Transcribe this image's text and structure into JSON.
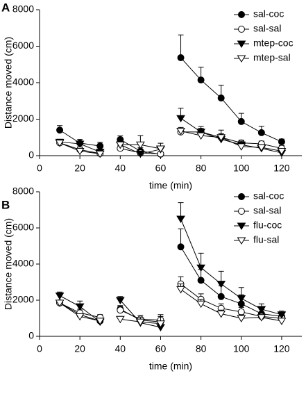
{
  "chart_data": [
    {
      "type": "line",
      "panel_label": "A",
      "xlabel": "time (min)",
      "ylabel": "Distance moved (cm)",
      "x": [
        10,
        20,
        30,
        null,
        40,
        50,
        60,
        null,
        70,
        80,
        90,
        100,
        110,
        120
      ],
      "xlim": [
        0,
        130
      ],
      "xticks": [
        0,
        20,
        40,
        60,
        80,
        100,
        120
      ],
      "ylim": [
        0,
        8000
      ],
      "yticks": [
        0,
        2000,
        4000,
        6000,
        8000
      ],
      "legend": "upper right",
      "series": [
        {
          "name": "sal-coc",
          "marker": "circle",
          "color": "#000000",
          "values": [
            1400,
            690,
            530,
            null,
            880,
            250,
            80,
            null,
            5370,
            4150,
            3160,
            1870,
            1260,
            760
          ],
          "errors": [
            250,
            200,
            200,
            null,
            200,
            200,
            100,
            null,
            1250,
            700,
            700,
            450,
            350,
            150
          ]
        },
        {
          "name": "sal-sal",
          "marker": "circle",
          "color": "#ffffff",
          "values": [
            700,
            330,
            120,
            null,
            400,
            150,
            100,
            null,
            1300,
            1300,
            1000,
            700,
            650,
            400
          ],
          "errors": [
            150,
            150,
            100,
            null,
            150,
            100,
            100,
            null,
            200,
            200,
            200,
            150,
            150,
            150
          ]
        },
        {
          "name": "mtep-coc",
          "marker": "triangle-down",
          "color": "#000000",
          "values": [
            750,
            650,
            200,
            null,
            600,
            100,
            350,
            null,
            2050,
            1300,
            900,
            600,
            400,
            150
          ],
          "errors": [
            150,
            150,
            100,
            null,
            200,
            100,
            150,
            null,
            550,
            300,
            250,
            200,
            150,
            100
          ]
        },
        {
          "name": "mtep-sal",
          "marker": "triangle-down",
          "color": "#ffffff",
          "values": [
            700,
            250,
            100,
            null,
            600,
            600,
            380,
            null,
            1350,
            1100,
            1000,
            500,
            450,
            250
          ],
          "errors": [
            150,
            150,
            100,
            null,
            200,
            500,
            300,
            null,
            200,
            200,
            400,
            150,
            150,
            100
          ]
        }
      ]
    },
    {
      "type": "line",
      "panel_label": "B",
      "xlabel": "time (min)",
      "ylabel": "Distance moved (cm)",
      "x": [
        10,
        20,
        30,
        null,
        40,
        50,
        60,
        null,
        70,
        80,
        90,
        100,
        110,
        120
      ],
      "xlim": [
        0,
        130
      ],
      "xticks": [
        0,
        20,
        40,
        60,
        80,
        100,
        120
      ],
      "ylim": [
        0,
        8000
      ],
      "yticks": [
        0,
        2000,
        4000,
        6000,
        8000
      ],
      "legend": "upper right",
      "series": [
        {
          "name": "sal-coc",
          "marker": "circle",
          "color": "#000000",
          "values": [
            1850,
            1200,
            850,
            null,
            1500,
            900,
            800,
            null,
            4950,
            3100,
            2200,
            1800,
            1250,
            1100
          ],
          "errors": [
            150,
            200,
            150,
            null,
            200,
            150,
            150,
            null,
            1000,
            600,
            600,
            500,
            250,
            200
          ]
        },
        {
          "name": "sal-sal",
          "marker": "circle",
          "color": "#ffffff",
          "values": [
            1850,
            1300,
            1050,
            null,
            1450,
            950,
            900,
            null,
            2900,
            2050,
            1550,
            1350,
            1100,
            1000
          ],
          "errors": [
            150,
            200,
            150,
            null,
            200,
            200,
            200,
            null,
            400,
            300,
            250,
            250,
            200,
            150
          ]
        },
        {
          "name": "flu-coc",
          "marker": "triangle-down",
          "color": "#000000",
          "values": [
            2250,
            1650,
            800,
            null,
            2000,
            750,
            500,
            null,
            6500,
            3800,
            2900,
            2100,
            1500,
            1200
          ],
          "errors": [
            200,
            300,
            200,
            null,
            200,
            200,
            200,
            null,
            900,
            800,
            700,
            600,
            300,
            200
          ]
        },
        {
          "name": "flu-sal",
          "marker": "triangle-down",
          "color": "#ffffff",
          "values": [
            1850,
            1100,
            850,
            null,
            950,
            800,
            700,
            null,
            2600,
            1800,
            1250,
            1000,
            1050,
            850
          ],
          "errors": [
            150,
            150,
            100,
            null,
            150,
            250,
            500,
            null,
            300,
            250,
            200,
            200,
            150,
            150
          ]
        }
      ]
    }
  ]
}
